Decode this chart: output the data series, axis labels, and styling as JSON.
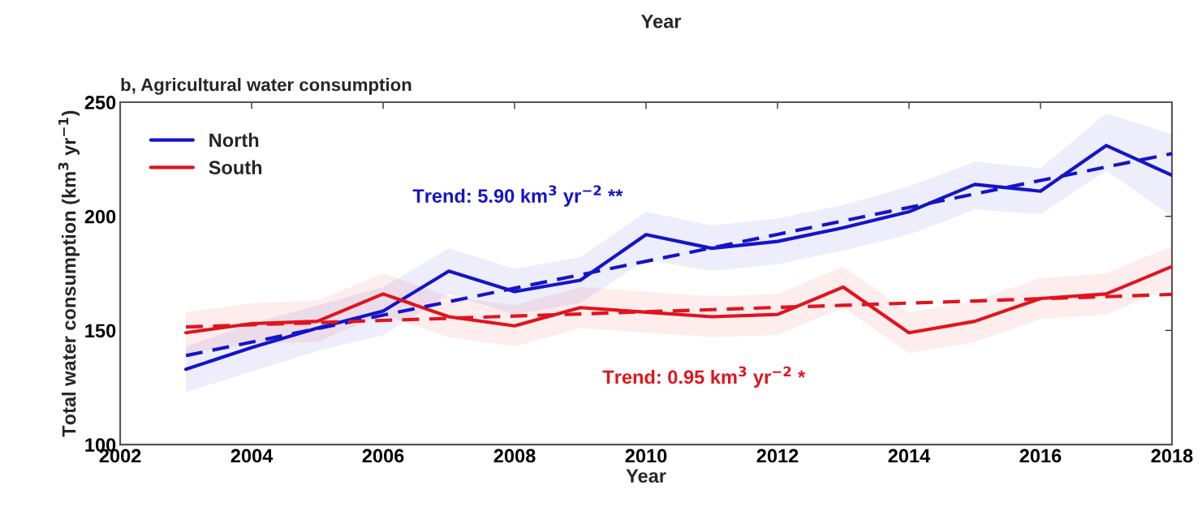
{
  "chart_data": {
    "type": "line",
    "title": "b, Agricultural water consumption",
    "xlabel": "Year",
    "ylabel": "Total water consumption (km$^{3}$ yr$^{−1}$)",
    "x": [
      2003,
      2004,
      2005,
      2006,
      2007,
      2008,
      2009,
      2010,
      2011,
      2012,
      2013,
      2014,
      2015,
      2016,
      2017,
      2018
    ],
    "series": [
      {
        "name": "North",
        "color": "#1414c8",
        "values": [
          133,
          142.5,
          151,
          158.5,
          176,
          167,
          172,
          192,
          186,
          189,
          195,
          202,
          214,
          211,
          231,
          218
        ],
        "lower": [
          123,
          132,
          141,
          148,
          166,
          157,
          162,
          181,
          176,
          179,
          185,
          192,
          203,
          201,
          220,
          200
        ],
        "upper": [
          143,
          153,
          161,
          169,
          186,
          177,
          182,
          202,
          196,
          199,
          205,
          213,
          224,
          221,
          245,
          236
        ]
      },
      {
        "name": "South",
        "color": "#e0141e",
        "values": [
          149,
          153,
          154,
          166,
          156,
          152,
          160,
          158,
          156,
          157,
          169,
          149,
          154,
          164,
          166,
          178
        ],
        "lower": [
          140,
          144,
          145,
          157,
          147,
          143,
          151,
          149,
          147,
          148,
          160,
          140,
          145,
          155,
          157,
          169
        ],
        "upper": [
          158,
          162,
          163,
          175,
          165,
          161,
          169,
          167,
          165,
          166,
          178,
          158,
          163,
          173,
          175,
          187
        ]
      },
      {
        "type": "line",
        "color": "#1414c8",
        "line_style": "dashed",
        "values": [
          139,
          144.9,
          150.8,
          156.7,
          162.6,
          168.5,
          174.4,
          180.3,
          186.2,
          192.1,
          198,
          203.9,
          209.8,
          215.7,
          221.6,
          227.5
        ]
      },
      {
        "type": "line",
        "color": "#e0141e",
        "line_style": "dashed",
        "values": [
          151.5,
          152.5,
          153.4,
          154.4,
          155.3,
          156.3,
          157.2,
          158.2,
          159.1,
          160.1,
          161,
          162,
          162.9,
          163.9,
          164.8,
          165.8
        ]
      }
    ],
    "xlim": [
      2002,
      2018
    ],
    "xticks": [
      2002,
      2004,
      2006,
      2008,
      2010,
      2012,
      2014,
      2016,
      2018
    ],
    "ylim": [
      100,
      250
    ],
    "yticks": [
      100,
      150,
      200,
      250
    ],
    "annotations": [
      "Year",
      "Trend: 5.90 km$^{3}$ yr$^{−2}$ **",
      "Trend: 0.95 km$^{3}$ yr$^{−2}$ *"
    ],
    "legend": "top left",
    "grid": false
  }
}
